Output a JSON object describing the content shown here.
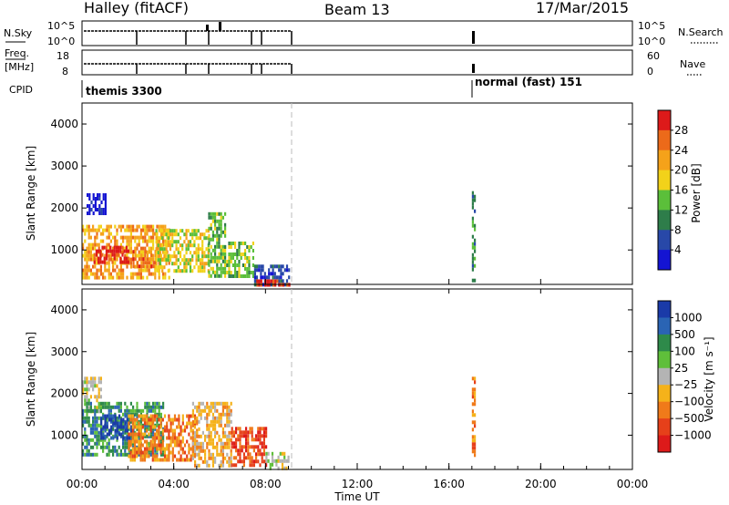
{
  "header": {
    "title_left": "Halley (fitACF)",
    "title_mid": "Beam 13",
    "title_right": "17/Mar/2015"
  },
  "top_panels": {
    "nsky_label": "N.Sky",
    "nsky_ticks": [
      "10^5",
      "10^0"
    ],
    "nsearch_label": "N.Search",
    "nsearch_ticks": [
      "10^5",
      "10^0"
    ],
    "freq_label_1": "Freq.",
    "freq_label_2": "[MHz]",
    "freq_ticks": [
      "18",
      "8"
    ],
    "nave_label": "Nave",
    "nave_ticks": [
      "60",
      "0"
    ],
    "cpid_label": "CPID",
    "cpid_segments": [
      "themis 3300",
      "normal (fast) 151"
    ]
  },
  "time_axis": {
    "tick_labels": [
      "00:00",
      "04:00",
      "08:00",
      "12:00",
      "16:00",
      "20:00",
      "00:00"
    ],
    "xlabel": "Time UT"
  },
  "colors": {
    "power": [
      "#1414d2",
      "#2848a8",
      "#2e7d4a",
      "#5bbf3a",
      "#f2d21a",
      "#f5a21a",
      "#ec6a1a",
      "#dd1a1a"
    ],
    "velocity": [
      "#1a3aa8",
      "#2a64b4",
      "#2e8a4a",
      "#5fbf3a",
      "#b4b4b4",
      "#f5b21a",
      "#f07a1a",
      "#e6401a",
      "#dd1a1a"
    ]
  },
  "chart_data": [
    {
      "type": "heatmap",
      "name": "power",
      "xlabel": "Time UT",
      "ylabel": "Slant Range [km]",
      "xlim": [
        0,
        24
      ],
      "ylim": [
        180,
        4500
      ],
      "yticks": [
        "1000",
        "2000",
        "3000",
        "4000"
      ],
      "colorbar_label": "Power [dB]",
      "colorbar_ticks": [
        "4",
        "8",
        "12",
        "16",
        "20",
        "24",
        "28"
      ],
      "regions": [
        {
          "t0": 0.2,
          "t1": 1.0,
          "r0": 1900,
          "r1": 2350,
          "level": 0
        },
        {
          "t0": 0.0,
          "t1": 3.8,
          "r0": 300,
          "r1": 1600,
          "level": 5
        },
        {
          "t0": 0.5,
          "t1": 2.0,
          "r0": 700,
          "r1": 1100,
          "level": 7
        },
        {
          "t0": 2.2,
          "t1": 3.2,
          "r0": 600,
          "r1": 1000,
          "level": 6
        },
        {
          "t0": 3.2,
          "t1": 5.5,
          "r0": 500,
          "r1": 1500,
          "level": 4
        },
        {
          "t0": 5.5,
          "t1": 6.2,
          "r0": 400,
          "r1": 1900,
          "level": 3
        },
        {
          "t0": 6.2,
          "t1": 7.5,
          "r0": 350,
          "r1": 1200,
          "level": 3
        },
        {
          "t0": 7.5,
          "t1": 9.0,
          "r0": 200,
          "r1": 650,
          "level": 1
        },
        {
          "t0": 7.6,
          "t1": 9.0,
          "r0": 200,
          "r1": 300,
          "level": 7
        },
        {
          "t0": 17.0,
          "t1": 17.12,
          "r0": 300,
          "r1": 2400,
          "level": 2
        }
      ]
    },
    {
      "type": "heatmap",
      "name": "velocity",
      "xlabel": "Time UT",
      "ylabel": "Slant Range [km]",
      "xlim": [
        0,
        24
      ],
      "ylim": [
        180,
        4500
      ],
      "yticks": [
        "1000",
        "2000",
        "3000",
        "4000"
      ],
      "colorbar_label": "Velocity [m s⁻¹]",
      "colorbar_ticks": [
        "1000",
        "500",
        "100",
        "25",
        "−25",
        "−100",
        "−500",
        "−1000"
      ],
      "regions": [
        {
          "t0": 0.0,
          "t1": 0.8,
          "r0": 1600,
          "r1": 2400,
          "level": 4
        },
        {
          "t0": 0.0,
          "t1": 3.5,
          "r0": 500,
          "r1": 1800,
          "level": 2
        },
        {
          "t0": 0.8,
          "t1": 2.2,
          "r0": 900,
          "r1": 1500,
          "level": 0
        },
        {
          "t0": 2.0,
          "t1": 5.0,
          "r0": 400,
          "r1": 1500,
          "level": 6
        },
        {
          "t0": 4.8,
          "t1": 6.5,
          "r0": 300,
          "r1": 1800,
          "level": 5
        },
        {
          "t0": 6.5,
          "t1": 8.0,
          "r0": 250,
          "r1": 1200,
          "level": 7
        },
        {
          "t0": 8.0,
          "t1": 9.0,
          "r0": 200,
          "r1": 600,
          "level": 4
        },
        {
          "t0": 17.0,
          "t1": 17.12,
          "r0": 500,
          "r1": 2400,
          "level": 6
        }
      ]
    }
  ]
}
